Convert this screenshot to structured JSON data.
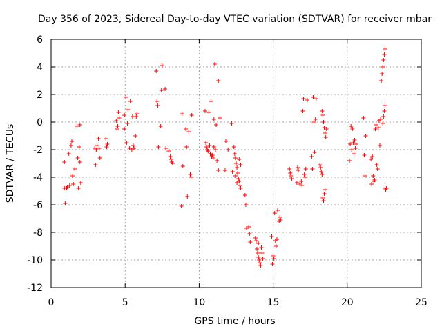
{
  "chart_data": {
    "type": "scatter",
    "title": "Day 356 of 2023, Sidereal Day-to-day VTEC variation (SDTVAR) for receiver mbar",
    "xlabel": "GPS time / hours",
    "ylabel": "SDTVAR / TECUs",
    "xlim": [
      0,
      25
    ],
    "ylim": [
      -12,
      6
    ],
    "xticks": [
      "0",
      "5",
      "10",
      "15",
      "20",
      "25"
    ],
    "yticks": [
      "-12",
      "-10",
      "-8",
      "-6",
      "-4",
      "-2",
      "0",
      "2",
      "4",
      "6"
    ],
    "grid": true,
    "marker": "plus",
    "color": "#ff0000",
    "series": [
      {
        "name": "SDTVAR",
        "points": [
          [
            0.9,
            -2.9
          ],
          [
            0.9,
            -4.8
          ],
          [
            0.95,
            -5.9
          ],
          [
            1.05,
            -4.8
          ],
          [
            1.1,
            -4.7
          ],
          [
            1.2,
            -2.3
          ],
          [
            1.25,
            -4.6
          ],
          [
            1.35,
            -1.7
          ],
          [
            1.4,
            -1.4
          ],
          [
            1.45,
            -3.9
          ],
          [
            1.5,
            -4.5
          ],
          [
            1.6,
            -3.4
          ],
          [
            1.75,
            -0.3
          ],
          [
            1.8,
            -2.6
          ],
          [
            1.85,
            -4.8
          ],
          [
            1.9,
            -1.8
          ],
          [
            1.95,
            -0.2
          ],
          [
            1.95,
            -2.9
          ],
          [
            2.0,
            -4.4
          ],
          [
            2.95,
            -1.9
          ],
          [
            3.0,
            -3.1
          ],
          [
            3.05,
            -2.0
          ],
          [
            3.1,
            -1.7
          ],
          [
            3.2,
            -1.2
          ],
          [
            3.25,
            -1.9
          ],
          [
            3.3,
            -2.6
          ],
          [
            3.7,
            -1.2
          ],
          [
            3.75,
            -1.8
          ],
          [
            3.8,
            -1.6
          ],
          [
            4.4,
            0.1
          ],
          [
            4.45,
            -0.5
          ],
          [
            4.5,
            -0.3
          ],
          [
            4.55,
            0.7
          ],
          [
            4.6,
            0.3
          ],
          [
            4.95,
            -0.5
          ],
          [
            4.95,
            0.5
          ],
          [
            5.05,
            1.8
          ],
          [
            5.1,
            -1.5
          ],
          [
            5.15,
            -0.1
          ],
          [
            5.2,
            0.9
          ],
          [
            5.3,
            -1.9
          ],
          [
            5.35,
            1.5
          ],
          [
            5.45,
            -2.0
          ],
          [
            5.5,
            0.4
          ],
          [
            5.55,
            -1.7
          ],
          [
            5.6,
            -1.9
          ],
          [
            5.7,
            -1.0
          ],
          [
            5.75,
            0.4
          ],
          [
            5.8,
            0.6
          ],
          [
            7.1,
            3.7
          ],
          [
            7.15,
            1.5
          ],
          [
            7.2,
            1.2
          ],
          [
            7.25,
            -1.8
          ],
          [
            7.4,
            -0.3
          ],
          [
            7.45,
            2.3
          ],
          [
            7.5,
            4.1
          ],
          [
            7.7,
            2.4
          ],
          [
            7.75,
            -1.9
          ],
          [
            7.95,
            -2.1
          ],
          [
            8.05,
            -2.5
          ],
          [
            8.1,
            -2.7
          ],
          [
            8.15,
            -2.9
          ],
          [
            8.2,
            -3.0
          ],
          [
            8.8,
            -6.1
          ],
          [
            8.85,
            0.6
          ],
          [
            8.9,
            -3.2
          ],
          [
            9.1,
            -0.5
          ],
          [
            9.15,
            -1.8
          ],
          [
            9.2,
            -5.4
          ],
          [
            9.3,
            -0.7
          ],
          [
            9.4,
            -3.8
          ],
          [
            9.45,
            -4.0
          ],
          [
            9.5,
            0.5
          ],
          [
            10.4,
            0.8
          ],
          [
            10.45,
            -1.5
          ],
          [
            10.5,
            -1.8
          ],
          [
            10.55,
            -2.0
          ],
          [
            10.6,
            -2.1
          ],
          [
            10.65,
            0.7
          ],
          [
            10.7,
            -1.7
          ],
          [
            10.75,
            -2.3
          ],
          [
            10.8,
            1.5
          ],
          [
            10.85,
            -2.5
          ],
          [
            10.9,
            -2.4
          ],
          [
            10.95,
            -2.6
          ],
          [
            11.0,
            0.2
          ],
          [
            11.0,
            -1.8
          ],
          [
            11.05,
            4.2
          ],
          [
            11.1,
            -2.0
          ],
          [
            11.15,
            -0.2
          ],
          [
            11.2,
            -2.8
          ],
          [
            11.3,
            3.0
          ],
          [
            11.3,
            -3.5
          ],
          [
            11.4,
            0.3
          ],
          [
            11.75,
            -3.5
          ],
          [
            11.8,
            -1.4
          ],
          [
            11.95,
            -2.0
          ],
          [
            12.2,
            -0.1
          ],
          [
            12.25,
            -3.6
          ],
          [
            12.35,
            -1.8
          ],
          [
            12.4,
            -2.3
          ],
          [
            12.45,
            -2.6
          ],
          [
            12.5,
            -3.0
          ],
          [
            12.55,
            -3.3
          ],
          [
            12.6,
            -3.7
          ],
          [
            12.65,
            -4.1
          ],
          [
            12.7,
            -4.3
          ],
          [
            12.75,
            -4.6
          ],
          [
            12.8,
            -4.8
          ],
          [
            12.45,
            -3.9
          ],
          [
            12.55,
            -4.4
          ],
          [
            12.7,
            -2.7
          ],
          [
            12.8,
            -3.1
          ],
          [
            13.1,
            -5.3
          ],
          [
            13.15,
            -6.0
          ],
          [
            13.2,
            -7.7
          ],
          [
            13.35,
            -7.6
          ],
          [
            13.4,
            -8.1
          ],
          [
            13.45,
            -8.7
          ],
          [
            13.8,
            -8.4
          ],
          [
            13.85,
            -8.6
          ],
          [
            13.9,
            -9.2
          ],
          [
            13.95,
            -9.5
          ],
          [
            14.0,
            -9.8
          ],
          [
            14.05,
            -10.0
          ],
          [
            14.1,
            -10.2
          ],
          [
            14.15,
            -10.4
          ],
          [
            14.2,
            -9.1
          ],
          [
            14.25,
            -9.5
          ],
          [
            14.3,
            -9.9
          ],
          [
            14.0,
            -8.8
          ],
          [
            14.9,
            -8.3
          ],
          [
            14.95,
            -10.3
          ],
          [
            15.0,
            -9.7
          ],
          [
            15.05,
            -9.9
          ],
          [
            15.1,
            -6.6
          ],
          [
            15.15,
            -8.6
          ],
          [
            15.2,
            -9.0
          ],
          [
            15.25,
            -8.5
          ],
          [
            15.3,
            -6.4
          ],
          [
            15.4,
            -7.2
          ],
          [
            15.45,
            -6.9
          ],
          [
            15.5,
            -7.1
          ],
          [
            16.1,
            -3.4
          ],
          [
            16.15,
            -3.7
          ],
          [
            16.2,
            -3.9
          ],
          [
            16.25,
            -4.1
          ],
          [
            16.6,
            -4.4
          ],
          [
            16.65,
            -3.3
          ],
          [
            16.7,
            -3.5
          ],
          [
            16.8,
            -4.5
          ],
          [
            16.9,
            -4.3
          ],
          [
            16.95,
            -4.6
          ],
          [
            17.0,
            0.8
          ],
          [
            17.05,
            1.7
          ],
          [
            17.1,
            -3.8
          ],
          [
            17.15,
            -4.0
          ],
          [
            17.2,
            -3.4
          ],
          [
            17.3,
            1.6
          ],
          [
            17.6,
            -2.5
          ],
          [
            17.65,
            -3.4
          ],
          [
            17.7,
            1.8
          ],
          [
            17.75,
            0.0
          ],
          [
            17.8,
            -2.2
          ],
          [
            17.85,
            0.2
          ],
          [
            17.9,
            1.7
          ],
          [
            18.15,
            -3.1
          ],
          [
            18.2,
            -3.3
          ],
          [
            18.25,
            -3.6
          ],
          [
            18.3,
            -3.8
          ],
          [
            18.35,
            -5.5
          ],
          [
            18.4,
            -5.7
          ],
          [
            18.45,
            -5.2
          ],
          [
            18.5,
            -4.9
          ],
          [
            18.3,
            0.8
          ],
          [
            18.35,
            0.5
          ],
          [
            18.4,
            0.0
          ],
          [
            18.45,
            -0.4
          ],
          [
            18.5,
            -0.8
          ],
          [
            18.55,
            -1.1
          ],
          [
            18.6,
            -0.5
          ],
          [
            20.15,
            -2.8
          ],
          [
            20.2,
            -1.6
          ],
          [
            20.25,
            -0.3
          ],
          [
            20.3,
            -2.0
          ],
          [
            20.35,
            -0.5
          ],
          [
            20.4,
            -1.5
          ],
          [
            20.45,
            -2.3
          ],
          [
            20.5,
            -1.3
          ],
          [
            20.55,
            -1.9
          ],
          [
            20.6,
            -1.6
          ],
          [
            21.1,
            0.3
          ],
          [
            21.15,
            -2.4
          ],
          [
            21.2,
            -3.9
          ],
          [
            21.25,
            -1.0
          ],
          [
            21.6,
            -2.7
          ],
          [
            21.65,
            -4.5
          ],
          [
            21.7,
            -2.5
          ],
          [
            21.75,
            -3.9
          ],
          [
            21.8,
            -4.3
          ],
          [
            21.85,
            -4.2
          ],
          [
            21.9,
            -0.5
          ],
          [
            21.95,
            -0.2
          ],
          [
            22.0,
            -3.1
          ],
          [
            22.05,
            -3.4
          ],
          [
            22.1,
            -0.4
          ],
          [
            22.15,
            0.1
          ],
          [
            22.2,
            -1.7
          ],
          [
            22.25,
            0.2
          ],
          [
            22.3,
            3.0
          ],
          [
            22.35,
            3.5
          ],
          [
            22.4,
            4.0
          ],
          [
            22.45,
            4.5
          ],
          [
            22.5,
            4.9
          ],
          [
            22.55,
            5.3
          ],
          [
            22.4,
            -0.1
          ],
          [
            22.45,
            0.4
          ],
          [
            22.5,
            0.8
          ],
          [
            22.55,
            1.2
          ],
          [
            22.55,
            -4.8
          ],
          [
            22.6,
            -4.9
          ],
          [
            22.65,
            -4.8
          ]
        ]
      }
    ]
  }
}
